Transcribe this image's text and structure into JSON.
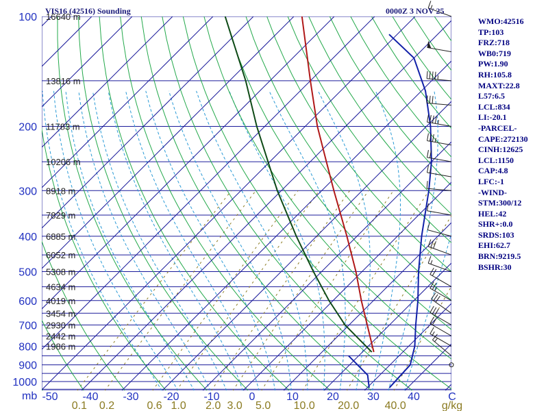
{
  "header": {
    "station": "VIS16 (42516) Sounding",
    "valid_time": "0000Z  3 NOV 25"
  },
  "indices": [
    "WMO:42516",
    "TP:103",
    "FRZ:718",
    "WB0:719",
    "PW:1.90",
    "RH:105.8",
    "MAXT:22.8",
    "L57:6.5",
    "LCL:834",
    "LI:-20.1",
    "-PARCEL-",
    "CAPE:272130",
    "CINH:12625",
    "LCL:1150",
    "CAP:4.8",
    "LFC:-1",
    "-WIND-",
    "STM:300/12",
    "HEL:42",
    "SHR+:0.0",
    "SRDS:103",
    "EHI:62.7",
    "BRN:9219.5",
    "BSHR:30"
  ],
  "colors": {
    "isobar": "#1a1a9a",
    "isotherm": "#1a1a9a",
    "dry_adiabat": "#22a84a",
    "moist_adiabat": "#2a9ad6",
    "mixing_ratio": "#8a7a20",
    "temperature": "#b01818",
    "dewpoint": "#0e4a16",
    "parcel_and_wind": "#1020a8",
    "wind_barb": "#202020"
  },
  "chart_data": {
    "type": "skew-t",
    "pressure_ticks": [
      100,
      200,
      300,
      400,
      500,
      600,
      700,
      800,
      900,
      1000
    ],
    "pressure_unit_label": "mb",
    "height_labels": [
      {
        "p": 100,
        "text": "16640 m"
      },
      {
        "p": 150,
        "text": "13816 m"
      },
      {
        "p": 200,
        "text": "11783 m"
      },
      {
        "p": 250,
        "text": "10206 m"
      },
      {
        "p": 300,
        "text": "8918 m"
      },
      {
        "p": 350,
        "text": "7829 m"
      },
      {
        "p": 400,
        "text": "6885 m"
      },
      {
        "p": 450,
        "text": "6052 m"
      },
      {
        "p": 500,
        "text": "5308 m"
      },
      {
        "p": 550,
        "text": "4634 m"
      },
      {
        "p": 600,
        "text": "4019 m"
      },
      {
        "p": 650,
        "text": "3454 m"
      },
      {
        "p": 700,
        "text": "2930 m"
      },
      {
        "p": 750,
        "text": "2442 m"
      },
      {
        "p": 800,
        "text": "1986 m"
      }
    ],
    "temperature_ticks": [
      -50,
      -40,
      -30,
      -20,
      -10,
      0,
      10,
      20,
      30,
      40
    ],
    "temperature_axis_end_label": "C",
    "mixing_ratio_ticks": [
      {
        "value": 0.1,
        "label": "0.1"
      },
      {
        "value": 0.2,
        "label": "0.2"
      },
      {
        "value": 0.6,
        "label": "0.6"
      },
      {
        "value": 1.0,
        "label": "1.0"
      },
      {
        "value": 2.0,
        "label": "2.0"
      },
      {
        "value": 3.0,
        "label": "3.0"
      },
      {
        "value": 5.0,
        "label": "5.0"
      },
      {
        "value": 10.0,
        "label": "10.0"
      },
      {
        "value": 20.0,
        "label": "20.0"
      },
      {
        "value": 40.0,
        "label": "40.0"
      }
    ],
    "mixing_ratio_unit": "g/kg",
    "pressure_range_mb": [
      100,
      1050
    ],
    "temperature_line": [
      {
        "p": 830,
        "t": 22.8
      },
      {
        "p": 700,
        "t": 14.5
      },
      {
        "p": 600,
        "t": 7.0
      },
      {
        "p": 500,
        "t": -1.5
      },
      {
        "p": 400,
        "t": -12.5
      },
      {
        "p": 300,
        "t": -27.0
      },
      {
        "p": 250,
        "t": -36.0
      },
      {
        "p": 200,
        "t": -47.0
      },
      {
        "p": 150,
        "t": -60.0
      },
      {
        "p": 100,
        "t": -78.0
      }
    ],
    "dewpoint_line": [
      {
        "p": 830,
        "t": 22.3
      },
      {
        "p": 700,
        "t": 9.0
      },
      {
        "p": 600,
        "t": -1.0
      },
      {
        "p": 500,
        "t": -12.0
      },
      {
        "p": 400,
        "t": -25.0
      },
      {
        "p": 300,
        "t": -41.0
      },
      {
        "p": 200,
        "t": -62.0
      },
      {
        "p": 150,
        "t": -76.0
      },
      {
        "p": 100,
        "t": -97.0
      }
    ],
    "parcel_line": [
      {
        "p": 1040,
        "t": 35.5
      },
      {
        "p": 900,
        "t": 35.0
      },
      {
        "p": 800,
        "t": 31.5
      },
      {
        "p": 700,
        "t": 26.5
      },
      {
        "p": 600,
        "t": 21.0
      },
      {
        "p": 500,
        "t": 14.0
      },
      {
        "p": 400,
        "t": 6.0
      },
      {
        "p": 300,
        "t": -3.5
      },
      {
        "p": 250,
        "t": -10.0
      },
      {
        "p": 200,
        "t": -19.0
      },
      {
        "p": 160,
        "t": -29.0
      },
      {
        "p": 130,
        "t": -40.0
      },
      {
        "p": 112,
        "t": -52.0
      }
    ],
    "lower_trace": [
      {
        "p": 850,
        "t": 17.5
      },
      {
        "p": 960,
        "t": 27.0
      },
      {
        "p": 1040,
        "t": 30.5
      }
    ],
    "wind_barbs": [
      {
        "p": 100,
        "dir": 290,
        "spd": 15
      },
      {
        "p": 125,
        "dir": 280,
        "spd": 50
      },
      {
        "p": 150,
        "dir": 275,
        "spd": 45
      },
      {
        "p": 175,
        "dir": 275,
        "spd": 30
      },
      {
        "p": 200,
        "dir": 280,
        "spd": 45
      },
      {
        "p": 225,
        "dir": 280,
        "spd": 35
      },
      {
        "p": 250,
        "dir": 280,
        "spd": 20
      },
      {
        "p": 275,
        "dir": 280,
        "spd": 15
      },
      {
        "p": 300,
        "dir": 275,
        "spd": 10
      },
      {
        "p": 350,
        "dir": 280,
        "spd": 10
      },
      {
        "p": 400,
        "dir": 285,
        "spd": 10
      },
      {
        "p": 450,
        "dir": 290,
        "spd": 30
      },
      {
        "p": 500,
        "dir": 290,
        "spd": 15
      },
      {
        "p": 550,
        "dir": 300,
        "spd": 20
      },
      {
        "p": 600,
        "dir": 300,
        "spd": 25
      },
      {
        "p": 650,
        "dir": 305,
        "spd": 30
      },
      {
        "p": 700,
        "dir": 300,
        "spd": 30
      },
      {
        "p": 750,
        "dir": 300,
        "spd": 20
      },
      {
        "p": 800,
        "dir": 300,
        "spd": 15
      },
      {
        "p": 850,
        "dir": 310,
        "spd": 15
      }
    ]
  }
}
